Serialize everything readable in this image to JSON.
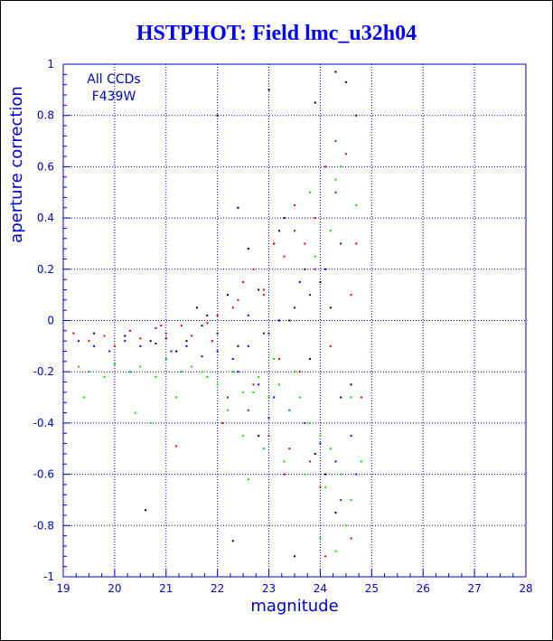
{
  "chart_data": {
    "type": "scatter",
    "title": "HSTPHOT: Field lmc_u32h04",
    "xlabel": "magnitude",
    "ylabel": "aperture correction",
    "xlim": [
      19,
      28
    ],
    "ylim": [
      -1,
      1
    ],
    "xticks": [
      "19",
      "20",
      "21",
      "22",
      "23",
      "24",
      "25",
      "26",
      "27",
      "28"
    ],
    "yticks": [
      "1",
      "0.8",
      "0.6",
      "0.4",
      "0.2",
      "0",
      "-0.2",
      "-0.4",
      "-0.6",
      "-0.8",
      "-1"
    ],
    "grid": true,
    "annotations": [
      "All CCDs",
      "F439W"
    ],
    "colors": {
      "axis": "#0000cc",
      "grid": "#0000cc",
      "title": "#0000ff"
    },
    "series": [
      {
        "color": "#000000",
        "x": [
          19.6,
          20.2,
          20.6,
          21.0,
          21.2,
          21.4,
          21.6,
          21.8,
          22.0,
          22.2,
          22.4,
          22.6,
          22.8,
          23.0,
          23.1,
          23.3,
          23.5,
          23.7,
          23.9,
          24.1,
          24.3,
          24.5,
          24.7,
          21.7,
          22.0,
          22.4,
          23.0,
          23.4,
          23.8,
          24.2,
          24.4,
          24.6,
          20.7,
          22.3,
          23.5,
          23.2,
          24.0,
          22.8,
          23.9,
          24.3
        ],
        "y": [
          -0.05,
          -0.06,
          -0.74,
          -0.07,
          -0.12,
          -0.08,
          0.05,
          0.02,
          0.8,
          0.1,
          0.44,
          0.28,
          0.12,
          0.9,
          0.3,
          0.4,
          -0.2,
          0.2,
          -0.52,
          -0.6,
          0.97,
          0.93,
          0.8,
          -0.02,
          -0.05,
          -0.1,
          -0.05,
          0.0,
          -0.15,
          0.05,
          -0.3,
          -0.25,
          -0.08,
          -0.86,
          -0.92,
          0.35,
          0.15,
          -0.45,
          0.85,
          -0.75
        ]
      },
      {
        "color": "#e00000",
        "x": [
          19.2,
          19.5,
          19.8,
          20.0,
          20.3,
          20.5,
          20.8,
          21.0,
          21.3,
          21.5,
          21.8,
          22.0,
          22.3,
          22.5,
          22.7,
          22.9,
          23.1,
          23.3,
          23.5,
          23.7,
          23.9,
          24.1,
          24.3,
          24.5,
          24.7,
          22.2,
          22.6,
          23.0,
          23.4,
          23.8,
          24.0,
          24.4,
          24.6,
          24.8,
          22.4,
          22.9,
          23.6,
          24.2,
          23.2,
          22.7,
          21.9,
          21.2,
          20.9,
          24.3,
          24.6,
          23.9,
          23.5,
          24.1,
          22.1,
          23.3
        ],
        "y": [
          -0.05,
          -0.08,
          -0.06,
          -0.1,
          -0.04,
          -0.07,
          -0.03,
          -0.05,
          -0.02,
          -0.06,
          -0.01,
          0.02,
          0.05,
          0.15,
          0.2,
          0.1,
          0.3,
          0.25,
          0.35,
          0.3,
          0.4,
          0.6,
          0.7,
          0.65,
          0.3,
          -0.3,
          -0.35,
          -0.45,
          -0.5,
          -0.55,
          -0.65,
          -0.7,
          -0.85,
          -0.3,
          0.08,
          0.12,
          -0.2,
          -0.1,
          -0.15,
          -0.25,
          -0.08,
          -0.49,
          -0.02,
          0.5,
          0.1,
          0.2,
          0.45,
          -0.92,
          -0.4,
          -0.6
        ]
      },
      {
        "color": "#0000ff",
        "x": [
          19.3,
          19.6,
          19.9,
          20.2,
          20.5,
          20.8,
          21.1,
          21.4,
          21.7,
          22.0,
          22.3,
          22.6,
          22.9,
          23.2,
          23.5,
          23.8,
          24.1,
          24.4,
          24.7,
          22.4,
          22.8,
          23.1,
          23.4,
          23.7,
          24.0,
          24.3,
          24.6,
          22.6,
          23.0,
          23.6
        ],
        "y": [
          -0.08,
          -0.1,
          -0.12,
          -0.08,
          -0.1,
          -0.09,
          -0.12,
          -0.1,
          -0.14,
          -0.12,
          -0.15,
          -0.1,
          -0.05,
          0.0,
          0.05,
          0.1,
          0.2,
          0.3,
          -0.6,
          -0.2,
          -0.25,
          -0.3,
          -0.35,
          -0.4,
          -0.48,
          -0.55,
          -0.45,
          0.02,
          -0.38,
          0.15
        ]
      },
      {
        "color": "#00dd00",
        "x": [
          19.3,
          19.5,
          19.8,
          20.0,
          20.3,
          20.5,
          20.8,
          21.0,
          21.3,
          21.5,
          21.8,
          22.0,
          22.3,
          22.5,
          22.8,
          23.0,
          23.2,
          23.4,
          23.6,
          23.8,
          24.0,
          24.2,
          24.4,
          24.6,
          24.8,
          22.5,
          22.9,
          23.3,
          23.7,
          24.1,
          24.5,
          24.3,
          24.7,
          24.2,
          23.9,
          20.4,
          20.7,
          21.2,
          21.7,
          22.2,
          22.7,
          23.1,
          23.5,
          24.3,
          24.6,
          24.4,
          23.8,
          22.6,
          19.4,
          24.0
        ],
        "y": [
          -0.18,
          -0.2,
          -0.22,
          -0.17,
          -0.2,
          -0.18,
          -0.22,
          -0.15,
          -0.2,
          -0.18,
          -0.22,
          -0.25,
          -0.2,
          -0.28,
          -0.22,
          -0.3,
          -0.25,
          -0.35,
          -0.3,
          -0.4,
          -0.45,
          -0.5,
          -0.6,
          -0.7,
          -0.55,
          -0.45,
          -0.5,
          -0.55,
          -0.6,
          -0.65,
          -0.8,
          0.55,
          0.45,
          0.35,
          0.25,
          -0.36,
          -0.4,
          -0.3,
          -0.2,
          -0.35,
          -0.28,
          -0.15,
          -0.2,
          -0.9,
          -0.3,
          0.6,
          0.5,
          -0.62,
          -0.3,
          -0.85
        ]
      }
    ]
  }
}
